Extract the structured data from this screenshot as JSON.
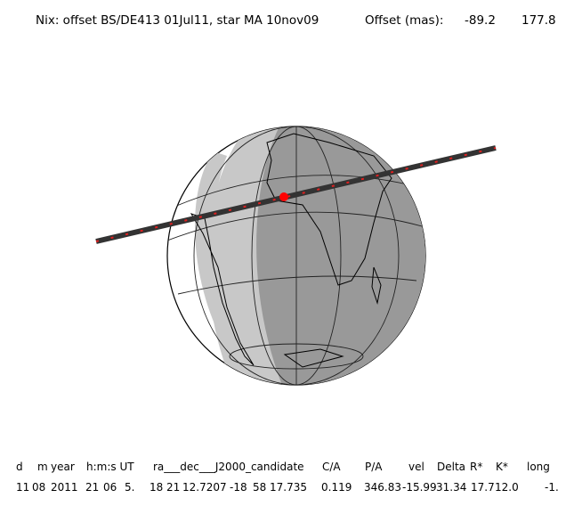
{
  "header": {
    "title": "Nix: offset BS/DE413 01Jul11, star MA 10nov09",
    "offset_label": "Offset (mas):",
    "offset_values": [
      "-89.2",
      "177.8"
    ]
  },
  "table": {
    "columns": [
      "d",
      "m",
      "year",
      "h:m:s UT",
      "ra___dec___J2000_candidate",
      "C/A",
      "P/A",
      "vel",
      "Delta",
      "R*",
      "K*",
      "long"
    ],
    "rows": [
      [
        "11",
        "08",
        "2011",
        "21",
        "06",
        "5.",
        "18",
        "21",
        "12.7207",
        "-18",
        "58",
        "17.735",
        "0.119",
        "346.83",
        "-15.99",
        "31.34",
        "17.7",
        "12.0",
        "-1."
      ]
    ]
  }
}
